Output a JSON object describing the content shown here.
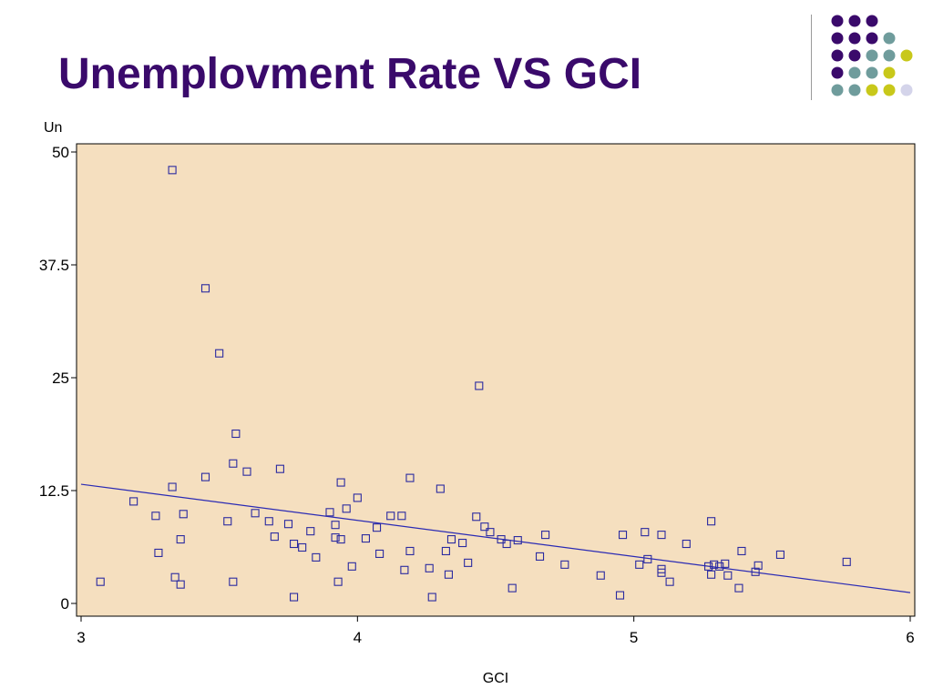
{
  "slide": {
    "title": "Unemplovment Rate VS GCI",
    "title_color": "#3a0a6b"
  },
  "decoration": {
    "dot_rows": [
      [
        "purple",
        "purple",
        "purple"
      ],
      [
        "purple",
        "purple",
        "purple",
        "teal"
      ],
      [
        "purple",
        "purple",
        "teal",
        "teal",
        "yellow"
      ],
      [
        "purple",
        "teal",
        "teal",
        "yellow"
      ],
      [
        "teal",
        "teal",
        "yellow",
        "yellow",
        "lavender"
      ]
    ],
    "colors": {
      "purple": "#3a0a6b",
      "teal": "#6f9c9c",
      "yellow": "#c8c81a",
      "lavender": "#d4d4ea"
    }
  },
  "chart_data": {
    "type": "scatter",
    "xlabel": "GCI",
    "ylabel": "Un",
    "xlim": [
      3,
      6
    ],
    "ylim": [
      0,
      50
    ],
    "x_ticks": [
      3,
      4,
      5,
      6
    ],
    "y_ticks": [
      0,
      12.5,
      25,
      37.5,
      50
    ],
    "x_tick_labels": [
      "3",
      "4",
      "5",
      "6"
    ],
    "y_tick_labels": [
      "0",
      "12.5",
      "25",
      "37.5",
      "50"
    ],
    "grid": false,
    "background": "#f5dfbf",
    "marker_color": "#2a2aa0",
    "line_color": "#2a2ab4",
    "points": [
      {
        "x": 3.07,
        "y": 2.4
      },
      {
        "x": 3.19,
        "y": 11.3
      },
      {
        "x": 3.27,
        "y": 9.7
      },
      {
        "x": 3.28,
        "y": 5.6
      },
      {
        "x": 3.33,
        "y": 48.0
      },
      {
        "x": 3.33,
        "y": 12.9
      },
      {
        "x": 3.34,
        "y": 2.9
      },
      {
        "x": 3.36,
        "y": 2.1
      },
      {
        "x": 3.36,
        "y": 7.1
      },
      {
        "x": 3.37,
        "y": 9.9
      },
      {
        "x": 3.45,
        "y": 34.9
      },
      {
        "x": 3.45,
        "y": 14.0
      },
      {
        "x": 3.5,
        "y": 27.7
      },
      {
        "x": 3.53,
        "y": 9.1
      },
      {
        "x": 3.55,
        "y": 15.5
      },
      {
        "x": 3.55,
        "y": 2.4
      },
      {
        "x": 3.56,
        "y": 18.8
      },
      {
        "x": 3.6,
        "y": 14.6
      },
      {
        "x": 3.63,
        "y": 10.0
      },
      {
        "x": 3.68,
        "y": 9.1
      },
      {
        "x": 3.7,
        "y": 7.4
      },
      {
        "x": 3.72,
        "y": 14.9
      },
      {
        "x": 3.75,
        "y": 8.8
      },
      {
        "x": 3.77,
        "y": 6.6
      },
      {
        "x": 3.77,
        "y": 0.7
      },
      {
        "x": 3.8,
        "y": 6.2
      },
      {
        "x": 3.83,
        "y": 8.0
      },
      {
        "x": 3.85,
        "y": 5.1
      },
      {
        "x": 3.9,
        "y": 10.1
      },
      {
        "x": 3.92,
        "y": 8.7
      },
      {
        "x": 3.92,
        "y": 7.3
      },
      {
        "x": 3.93,
        "y": 2.4
      },
      {
        "x": 3.94,
        "y": 13.4
      },
      {
        "x": 3.94,
        "y": 7.1
      },
      {
        "x": 3.96,
        "y": 10.5
      },
      {
        "x": 3.98,
        "y": 4.1
      },
      {
        "x": 4.0,
        "y": 11.7
      },
      {
        "x": 4.03,
        "y": 7.2
      },
      {
        "x": 4.07,
        "y": 8.4
      },
      {
        "x": 4.08,
        "y": 5.5
      },
      {
        "x": 4.12,
        "y": 9.7
      },
      {
        "x": 4.16,
        "y": 9.7
      },
      {
        "x": 4.17,
        "y": 3.7
      },
      {
        "x": 4.19,
        "y": 13.9
      },
      {
        "x": 4.19,
        "y": 5.8
      },
      {
        "x": 4.26,
        "y": 3.9
      },
      {
        "x": 4.27,
        "y": 0.7
      },
      {
        "x": 4.3,
        "y": 12.7
      },
      {
        "x": 4.32,
        "y": 5.8
      },
      {
        "x": 4.33,
        "y": 3.2
      },
      {
        "x": 4.34,
        "y": 7.1
      },
      {
        "x": 4.38,
        "y": 6.7
      },
      {
        "x": 4.4,
        "y": 4.5
      },
      {
        "x": 4.43,
        "y": 9.6
      },
      {
        "x": 4.44,
        "y": 24.1
      },
      {
        "x": 4.46,
        "y": 8.5
      },
      {
        "x": 4.48,
        "y": 7.9
      },
      {
        "x": 4.52,
        "y": 7.1
      },
      {
        "x": 4.54,
        "y": 6.6
      },
      {
        "x": 4.56,
        "y": 1.7
      },
      {
        "x": 4.58,
        "y": 7.0
      },
      {
        "x": 4.66,
        "y": 5.2
      },
      {
        "x": 4.68,
        "y": 7.6
      },
      {
        "x": 4.75,
        "y": 4.3
      },
      {
        "x": 4.88,
        "y": 3.1
      },
      {
        "x": 4.95,
        "y": 0.9
      },
      {
        "x": 4.96,
        "y": 7.6
      },
      {
        "x": 5.02,
        "y": 4.3
      },
      {
        "x": 5.04,
        "y": 7.9
      },
      {
        "x": 5.05,
        "y": 4.9
      },
      {
        "x": 5.1,
        "y": 7.6
      },
      {
        "x": 5.1,
        "y": 3.8
      },
      {
        "x": 5.1,
        "y": 3.4
      },
      {
        "x": 5.13,
        "y": 2.4
      },
      {
        "x": 5.19,
        "y": 6.6
      },
      {
        "x": 5.27,
        "y": 4.1
      },
      {
        "x": 5.28,
        "y": 9.1
      },
      {
        "x": 5.28,
        "y": 3.2
      },
      {
        "x": 5.29,
        "y": 4.3
      },
      {
        "x": 5.31,
        "y": 4.1
      },
      {
        "x": 5.33,
        "y": 4.4
      },
      {
        "x": 5.34,
        "y": 3.1
      },
      {
        "x": 5.38,
        "y": 1.7
      },
      {
        "x": 5.39,
        "y": 5.8
      },
      {
        "x": 5.44,
        "y": 3.5
      },
      {
        "x": 5.45,
        "y": 4.2
      },
      {
        "x": 5.53,
        "y": 5.4
      },
      {
        "x": 5.77,
        "y": 4.6
      }
    ],
    "trend_line": {
      "x": [
        3,
        6
      ],
      "y": [
        13.2,
        1.2
      ]
    }
  }
}
